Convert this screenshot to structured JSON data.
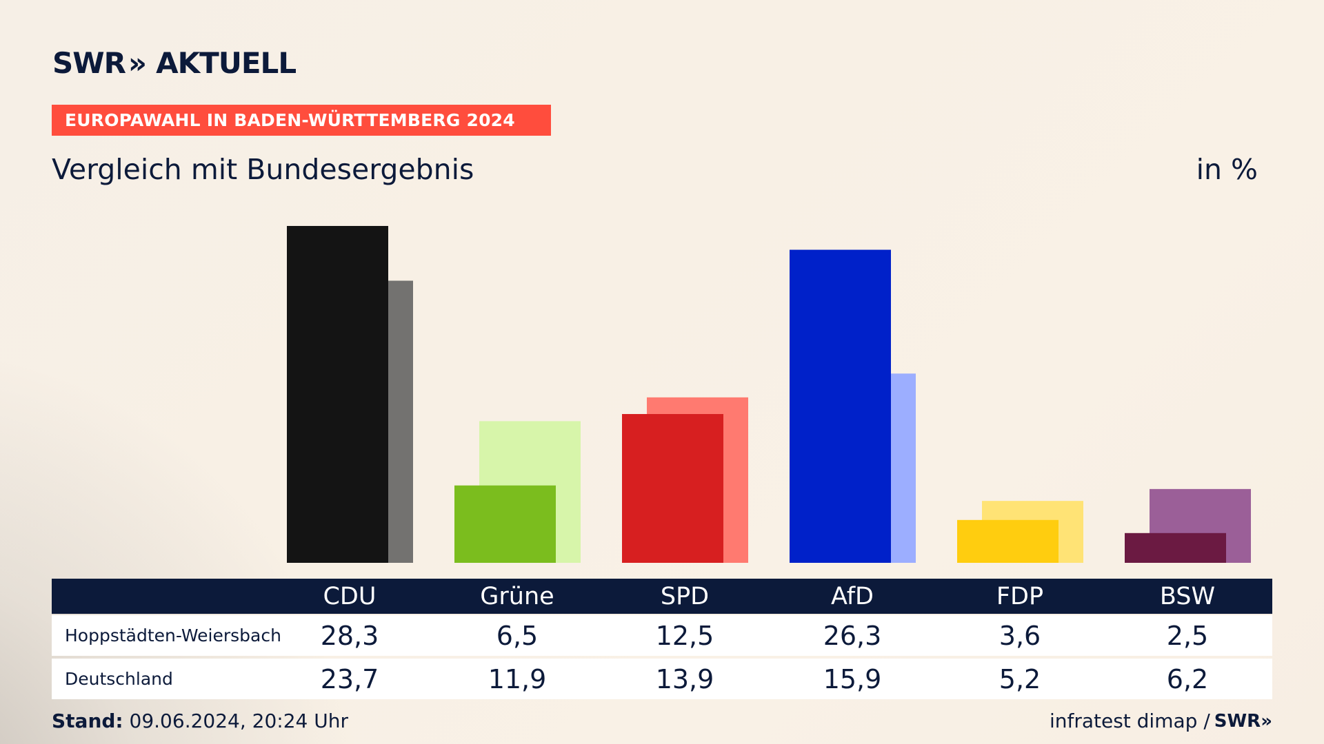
{
  "header": {
    "logo_text": "SWR",
    "logo_arrows": "»",
    "logo_suffix": "AKTUELL",
    "banner": "EUROPAWAHL IN BADEN-WÜRTTEMBERG 2024",
    "subtitle": "Vergleich mit Bundesergebnis",
    "unit": "in %"
  },
  "table": {
    "rows": [
      {
        "label": "Hoppstädten-Weiersbach",
        "values": [
          "28,3",
          "6,5",
          "12,5",
          "26,3",
          "3,6",
          "2,5"
        ]
      },
      {
        "label": "Deutschland",
        "values": [
          "23,7",
          "11,9",
          "13,9",
          "15,9",
          "5,2",
          "6,2"
        ]
      }
    ]
  },
  "footer": {
    "stand_label": "Stand:",
    "stand_value": "09.06.2024, 20:24 Uhr",
    "source": "infratest dimap /",
    "source_logo": "SWR»"
  },
  "chart_data": {
    "type": "bar",
    "categories": [
      "CDU",
      "Grüne",
      "SPD",
      "AfD",
      "FDP",
      "BSW"
    ],
    "series": [
      {
        "values": [
          28.3,
          6.5,
          12.5,
          26.3,
          3.6,
          2.5
        ]
      },
      {
        "values": [
          23.7,
          11.9,
          13.9,
          15.9,
          5.2,
          6.2
        ]
      }
    ],
    "colors_front": [
      "#141414",
      "#7bbd1e",
      "#d71f20",
      "#0021c9",
      "#ffcd0f",
      "#6b1a42"
    ],
    "colors_back": [
      "#737270",
      "#d7f5aa",
      "#ff7a70",
      "#9caeff",
      "#ffe375",
      "#9b5f98"
    ],
    "ylim": [
      0,
      28.3
    ],
    "grid": false,
    "legend": "none"
  }
}
